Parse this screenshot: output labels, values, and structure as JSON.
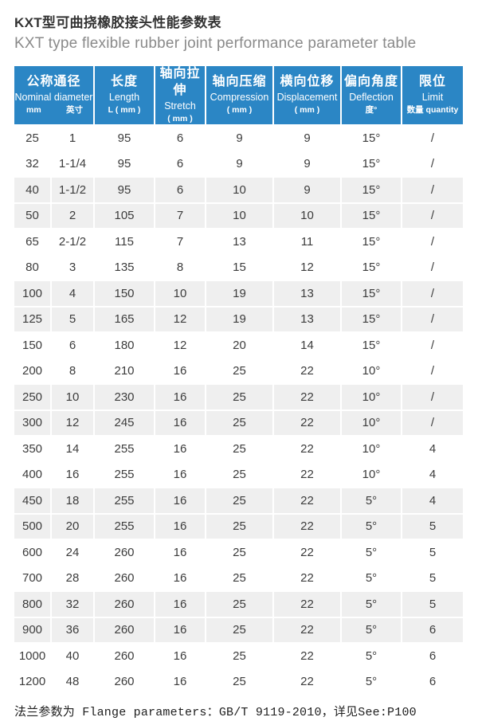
{
  "page": {
    "title_zh": "KXT型可曲挠橡胶接头性能参数表",
    "title_en": "KXT type flexible rubber joint performance parameter table",
    "footer_note": "法兰参数为 Flange parameters：GB/T 9119-2010，详见See:P100"
  },
  "colors": {
    "header_bg": "#2b86c5",
    "row_alt_bg": "#efefef",
    "header_text": "#ffffff",
    "body_text": "#3c3c3c",
    "subtitle_text": "#8a8a8a"
  },
  "table": {
    "header": {
      "group": {
        "zh": "公称通径",
        "en": "Nominal diameter",
        "sub_left": "mm",
        "sub_right": "英寸"
      },
      "cols": [
        {
          "zh": "长度",
          "en": "Length",
          "sub": "L ( mm )"
        },
        {
          "zh": "轴向拉伸",
          "en": "Stretch",
          "sub": "( mm )"
        },
        {
          "zh": "轴向压缩",
          "en": "Compression",
          "sub": "( mm )"
        },
        {
          "zh": "横向位移",
          "en": "Displacement",
          "sub": "( mm )"
        },
        {
          "zh": "偏向角度",
          "en": "Deflection",
          "sub": "度°"
        },
        {
          "zh": "限位",
          "en": "Limit",
          "sub": "数量 quantity"
        }
      ]
    },
    "rows": [
      [
        "25",
        "1",
        "95",
        "6",
        "9",
        "9",
        "15°",
        "/"
      ],
      [
        "32",
        "1-1/4",
        "95",
        "6",
        "9",
        "9",
        "15°",
        "/"
      ],
      [
        "40",
        "1-1/2",
        "95",
        "6",
        "10",
        "9",
        "15°",
        "/"
      ],
      [
        "50",
        "2",
        "105",
        "7",
        "10",
        "10",
        "15°",
        "/"
      ],
      [
        "65",
        "2-1/2",
        "115",
        "7",
        "13",
        "11",
        "15°",
        "/"
      ],
      [
        "80",
        "3",
        "135",
        "8",
        "15",
        "12",
        "15°",
        "/"
      ],
      [
        "100",
        "4",
        "150",
        "10",
        "19",
        "13",
        "15°",
        "/"
      ],
      [
        "125",
        "5",
        "165",
        "12",
        "19",
        "13",
        "15°",
        "/"
      ],
      [
        "150",
        "6",
        "180",
        "12",
        "20",
        "14",
        "15°",
        "/"
      ],
      [
        "200",
        "8",
        "210",
        "16",
        "25",
        "22",
        "10°",
        "/"
      ],
      [
        "250",
        "10",
        "230",
        "16",
        "25",
        "22",
        "10°",
        "/"
      ],
      [
        "300",
        "12",
        "245",
        "16",
        "25",
        "22",
        "10°",
        "/"
      ],
      [
        "350",
        "14",
        "255",
        "16",
        "25",
        "22",
        "10°",
        "4"
      ],
      [
        "400",
        "16",
        "255",
        "16",
        "25",
        "22",
        "10°",
        "4"
      ],
      [
        "450",
        "18",
        "255",
        "16",
        "25",
        "22",
        "5°",
        "4"
      ],
      [
        "500",
        "20",
        "255",
        "16",
        "25",
        "22",
        "5°",
        "5"
      ],
      [
        "600",
        "24",
        "260",
        "16",
        "25",
        "22",
        "5°",
        "5"
      ],
      [
        "700",
        "28",
        "260",
        "16",
        "25",
        "22",
        "5°",
        "5"
      ],
      [
        "800",
        "32",
        "260",
        "16",
        "25",
        "22",
        "5°",
        "5"
      ],
      [
        "900",
        "36",
        "260",
        "16",
        "25",
        "22",
        "5°",
        "6"
      ],
      [
        "1000",
        "40",
        "260",
        "16",
        "25",
        "22",
        "5°",
        "6"
      ],
      [
        "1200",
        "48",
        "260",
        "16",
        "25",
        "22",
        "5°",
        "6"
      ]
    ]
  }
}
